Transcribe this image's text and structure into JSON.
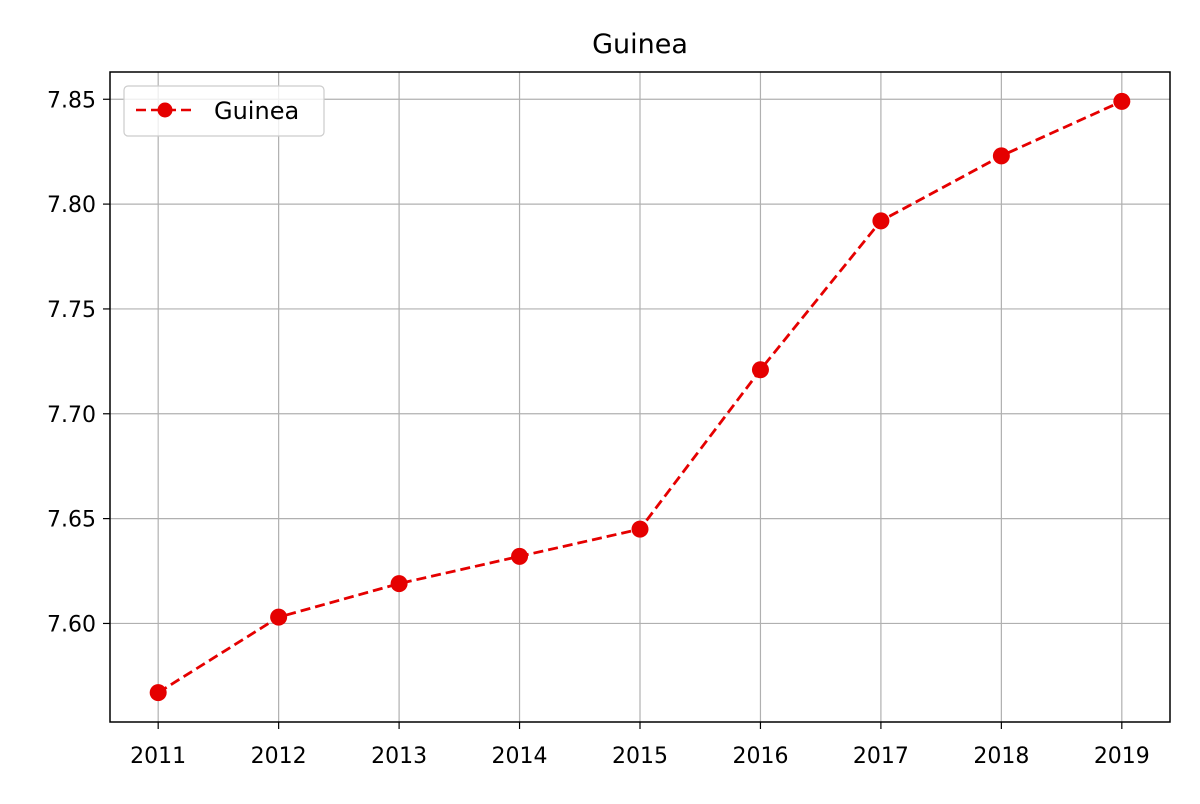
{
  "chart_data": {
    "type": "line",
    "title": "Guinea",
    "xlabel": "",
    "ylabel": "",
    "x": [
      2011,
      2012,
      2013,
      2014,
      2015,
      2016,
      2017,
      2018,
      2019
    ],
    "x_tick_labels": [
      "2011",
      "2012",
      "2013",
      "2014",
      "2015",
      "2016",
      "2017",
      "2018",
      "2019"
    ],
    "y_tick_labels": [
      "7.60",
      "7.65",
      "7.70",
      "7.75",
      "7.80",
      "7.85"
    ],
    "y_ticks": [
      7.6,
      7.65,
      7.7,
      7.75,
      7.8,
      7.85
    ],
    "xlim": [
      2010.6,
      2019.4
    ],
    "ylim": [
      7.553,
      7.863
    ],
    "grid": true,
    "legend_position": "top-left",
    "series": [
      {
        "name": "Guinea",
        "color": "#e50000",
        "line_style": "dashed",
        "marker": "circle",
        "values": [
          7.567,
          7.603,
          7.619,
          7.632,
          7.645,
          7.721,
          7.792,
          7.823,
          7.849
        ]
      }
    ]
  }
}
